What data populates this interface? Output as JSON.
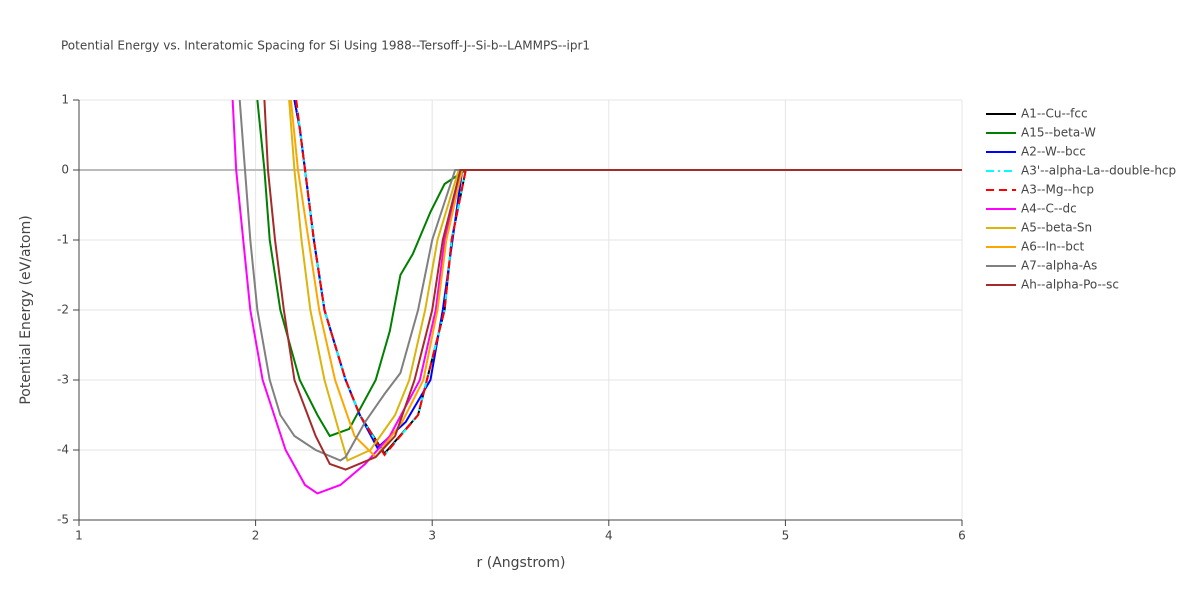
{
  "chart_data": {
    "type": "line",
    "title": "Potential Energy vs. Interatomic Spacing for Si Using 1988--Tersoff-J--Si-b--LAMMPS--ipr1",
    "x_label": "r (Angstrom)",
    "y_label": "Potential Energy (eV/atom)",
    "xlim": [
      1,
      6
    ],
    "ylim": [
      -5,
      1
    ],
    "xticks": [
      1,
      2,
      3,
      4,
      5,
      6
    ],
    "yticks": [
      -5,
      -4,
      -3,
      -2,
      -1,
      0,
      1
    ],
    "grid": true,
    "series": [
      {
        "name": "A1--Cu--fcc",
        "color": "#000000",
        "dash": "solid",
        "x": [
          2.22,
          2.25,
          2.33,
          2.39,
          2.51,
          2.59,
          2.73,
          2.92,
          3.07,
          3.11,
          3.19,
          6
        ],
        "values": [
          1,
          0.6,
          -1,
          -2,
          -3,
          -3.5,
          -4.05,
          -3.5,
          -2,
          -1,
          0,
          0
        ]
      },
      {
        "name": "A15--beta-W",
        "color": "#008000",
        "dash": "solid",
        "x": [
          2.01,
          2.05,
          2.08,
          2.14,
          2.25,
          2.35,
          2.42,
          2.53,
          2.68,
          2.76,
          2.82,
          2.89,
          2.99,
          3.07,
          3.19,
          6
        ],
        "values": [
          1,
          0,
          -1,
          -2,
          -3,
          -3.5,
          -3.8,
          -3.7,
          -3,
          -2.3,
          -1.5,
          -1.2,
          -0.6,
          -0.2,
          0,
          0
        ]
      },
      {
        "name": "A2--W--bcc",
        "color": "#0000ff",
        "dash": "solid",
        "x": [
          2.22,
          2.25,
          2.33,
          2.39,
          2.51,
          2.59,
          2.69,
          2.85,
          2.99,
          3.06,
          3.17,
          6
        ],
        "values": [
          1,
          0.6,
          -1,
          -2,
          -3,
          -3.5,
          -3.97,
          -3.6,
          -3,
          -2,
          0,
          0
        ]
      },
      {
        "name": "A3'--alpha-La--double-hcp",
        "color": "#00ffff",
        "dash": "dashdot",
        "x": [
          2.23,
          2.25,
          2.33,
          2.39,
          2.51,
          2.59,
          2.73,
          2.92,
          3.07,
          3.11,
          3.19,
          6
        ],
        "values": [
          1,
          0.6,
          -1,
          -2,
          -3,
          -3.5,
          -4.07,
          -3.5,
          -2,
          -1,
          0,
          0
        ]
      },
      {
        "name": "A3--Mg--hcp",
        "color": "#ff0000",
        "dash": "dash",
        "x": [
          2.23,
          2.25,
          2.33,
          2.39,
          2.51,
          2.59,
          2.73,
          2.92,
          3.07,
          3.11,
          3.19,
          6
        ],
        "values": [
          1,
          0.6,
          -1,
          -2,
          -3,
          -3.5,
          -4.07,
          -3.5,
          -2,
          -1,
          0,
          0
        ]
      },
      {
        "name": "A4--C--dc",
        "color": "#ff00ff",
        "dash": "solid",
        "x": [
          1.87,
          1.89,
          1.93,
          1.97,
          2.04,
          2.17,
          2.28,
          2.35,
          2.48,
          2.62,
          2.76,
          2.93,
          3.02,
          3.07,
          3.17,
          6
        ],
        "values": [
          1,
          0,
          -1,
          -2,
          -3,
          -4,
          -4.5,
          -4.62,
          -4.5,
          -4.2,
          -3.8,
          -3,
          -2,
          -1,
          0,
          0
        ]
      },
      {
        "name": "A5--beta-Sn",
        "color": "#dbb40c",
        "dash": "solid",
        "x": [
          2.19,
          2.22,
          2.26,
          2.31,
          2.39,
          2.48,
          2.52,
          2.65,
          2.79,
          2.87,
          2.96,
          3.03,
          3.15,
          6
        ],
        "values": [
          1,
          0,
          -1,
          -2,
          -3,
          -3.8,
          -4.15,
          -4,
          -3.5,
          -3,
          -2,
          -1,
          0,
          0
        ]
      },
      {
        "name": "A6--In--bct",
        "color": "#ffa500",
        "dash": "solid",
        "x": [
          2.2,
          2.24,
          2.3,
          2.36,
          2.45,
          2.56,
          2.68,
          2.83,
          2.95,
          3.03,
          3.08,
          3.17,
          6
        ],
        "values": [
          1,
          0,
          -1,
          -2,
          -3,
          -3.8,
          -4.1,
          -3.6,
          -3,
          -2,
          -1,
          0,
          0
        ]
      },
      {
        "name": "A7--alpha-As",
        "color": "#808080",
        "dash": "solid",
        "x": [
          1.91,
          1.94,
          1.97,
          2.01,
          2.08,
          2.14,
          2.22,
          2.34,
          2.48,
          2.51,
          2.62,
          2.73,
          2.82,
          2.92,
          3.0,
          3.13,
          6
        ],
        "values": [
          1,
          0,
          -1,
          -2,
          -3,
          -3.5,
          -3.8,
          -4,
          -4.15,
          -4.1,
          -3.6,
          -3.2,
          -2.9,
          -2,
          -1,
          0,
          0
        ]
      },
      {
        "name": "Ah--alpha-Po--sc",
        "color": "#a52a2a",
        "dash": "solid",
        "x": [
          2.05,
          2.07,
          2.11,
          2.16,
          2.22,
          2.34,
          2.42,
          2.51,
          2.68,
          2.79,
          2.9,
          3.0,
          3.06,
          3.16,
          6
        ],
        "values": [
          1,
          0,
          -1,
          -2,
          -3,
          -3.8,
          -4.2,
          -4.28,
          -4.1,
          -3.8,
          -3,
          -2,
          -1,
          0,
          0
        ]
      }
    ]
  }
}
